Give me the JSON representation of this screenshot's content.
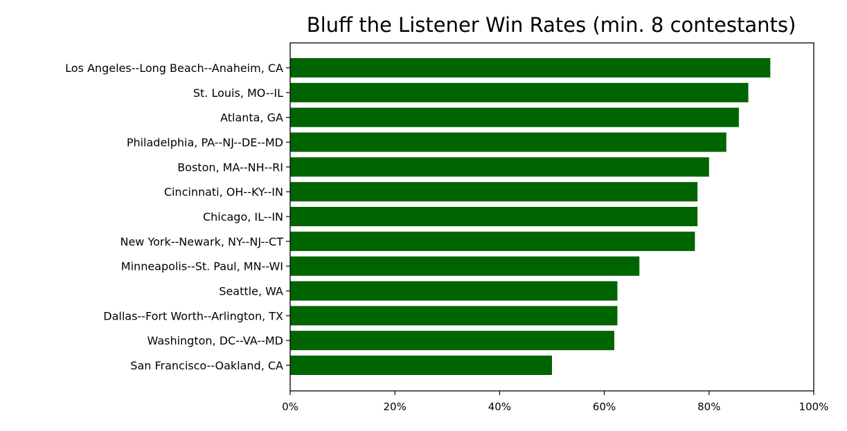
{
  "chart_data": {
    "type": "bar",
    "orientation": "horizontal",
    "title": "Bluff the Listener Win Rates (min. 8 contestants)",
    "xlabel": "",
    "ylabel": "",
    "xlim": [
      0,
      100
    ],
    "x_tick_labels": [
      "0%",
      "20%",
      "40%",
      "60%",
      "80%",
      "100%"
    ],
    "x_tick_values": [
      0,
      20,
      40,
      60,
      80,
      100
    ],
    "grid": false,
    "legend": "none",
    "bar_color": "#006400",
    "categories": [
      "Los Angeles--Long Beach--Anaheim, CA",
      "St. Louis, MO--IL",
      "Atlanta, GA",
      "Philadelphia, PA--NJ--DE--MD",
      "Boston, MA--NH--RI",
      "Cincinnati, OH--KY--IN",
      "Chicago, IL--IN",
      "New York--Newark, NY--NJ--CT",
      "Minneapolis--St. Paul, MN--WI",
      "Seattle, WA",
      "Dallas--Fort Worth--Arlington, TX",
      "Washington, DC--VA--MD",
      "San Francisco--Oakland, CA"
    ],
    "values": [
      91.7,
      87.5,
      85.7,
      83.3,
      80.0,
      77.8,
      77.8,
      77.3,
      66.7,
      62.5,
      62.5,
      61.9,
      50.0
    ]
  }
}
